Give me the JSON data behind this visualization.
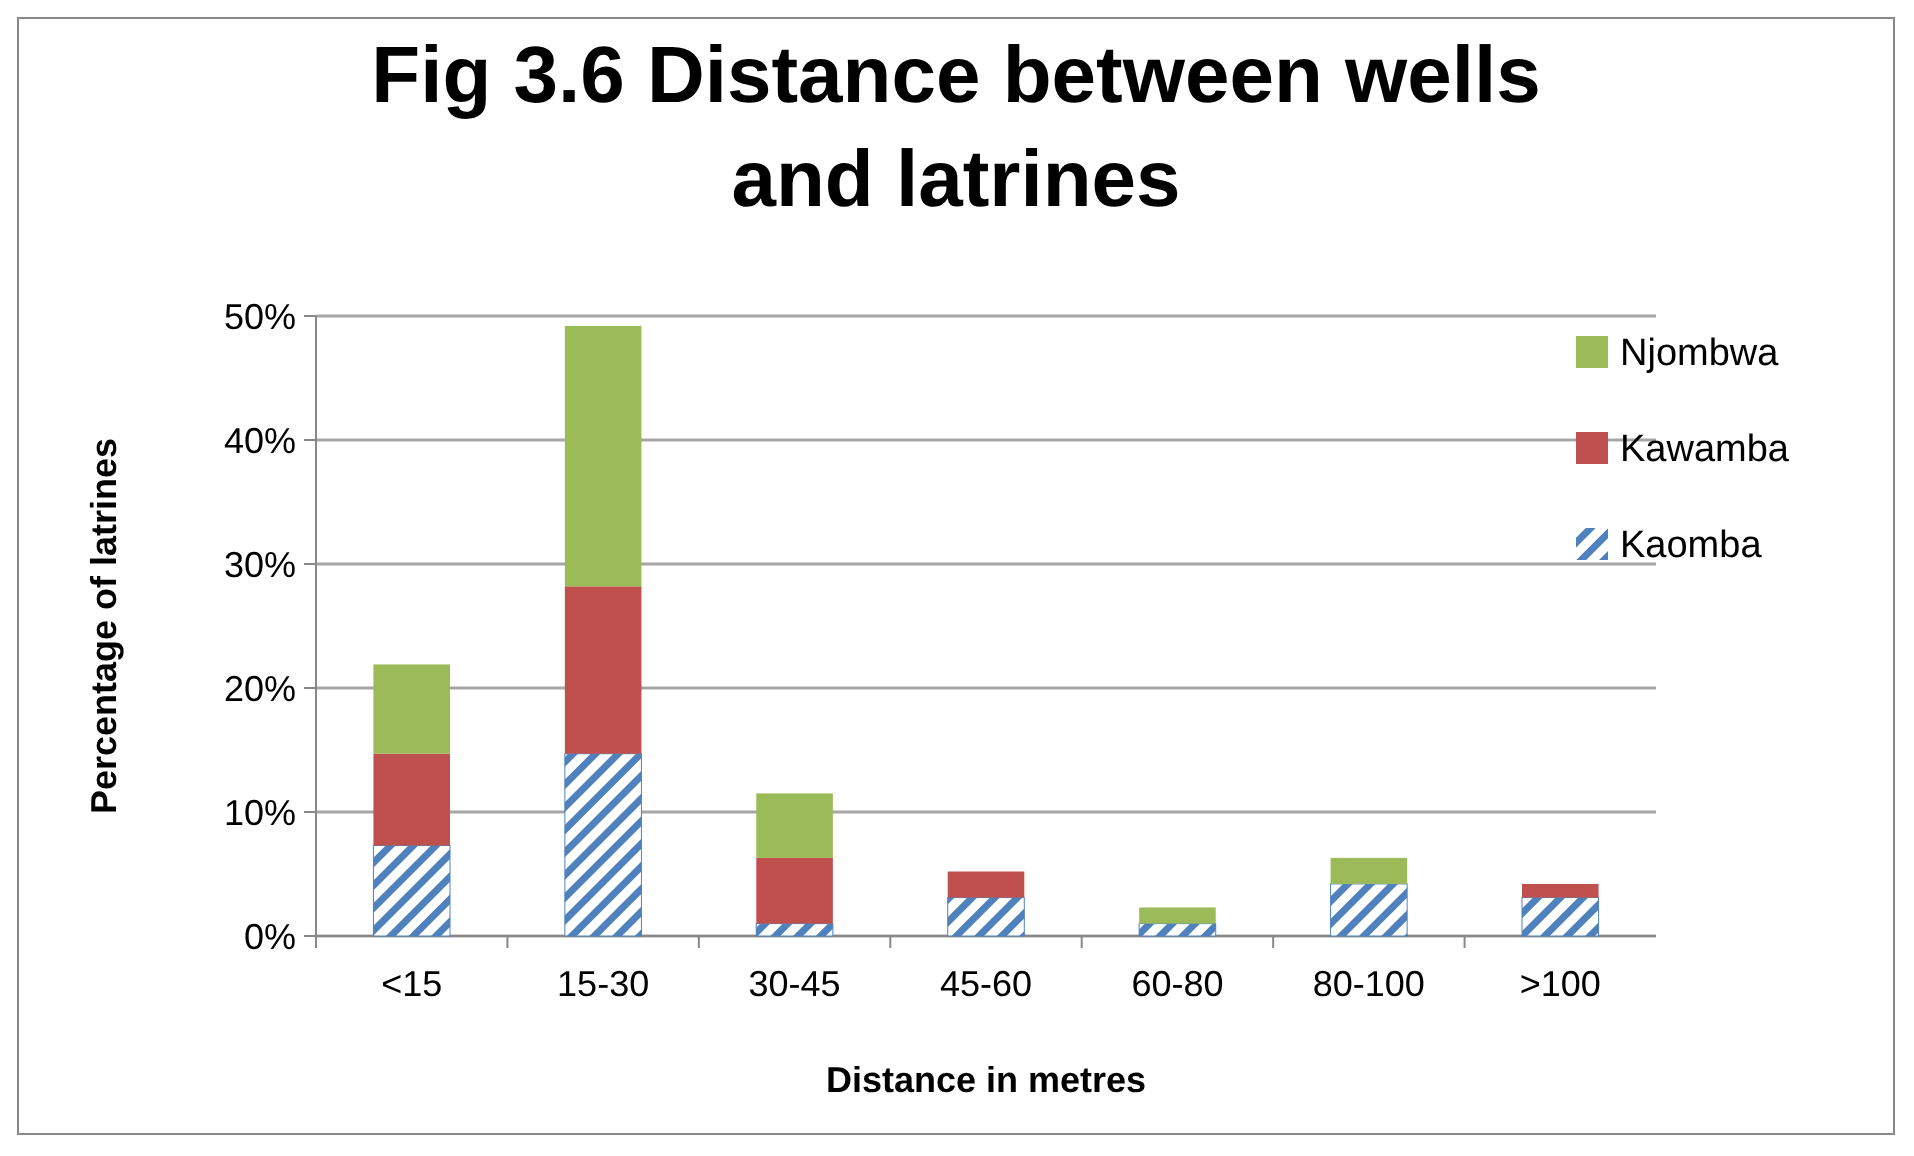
{
  "chart_data": {
    "type": "bar",
    "title": "Fig 3.6  Distance between wells and latrines",
    "xlabel": "Distance in metres",
    "ylabel": "Percentage of latrines",
    "categories": [
      "<15",
      "15-30",
      "30-45",
      "45-60",
      "60-80",
      "80-100",
      ">100"
    ],
    "stacked": true,
    "series": [
      {
        "name": "Kaomba",
        "color": "#4f81bd",
        "values": [
          7.3,
          14.7,
          1.0,
          3.1,
          1.0,
          4.2,
          3.1
        ]
      },
      {
        "name": "Kawamba",
        "color": "#c0504d",
        "values": [
          7.4,
          13.5,
          5.3,
          2.1,
          0,
          0,
          1.1
        ]
      },
      {
        "name": "Njombwa",
        "color": "#9bbb59",
        "values": [
          7.2,
          21.0,
          5.2,
          0,
          1.3,
          2.1,
          0
        ]
      }
    ],
    "ylim": [
      0,
      50
    ],
    "yticks": [
      {
        "value": 0,
        "label": "0%"
      },
      {
        "value": 10,
        "label": "10%"
      },
      {
        "value": 20,
        "label": "20%"
      },
      {
        "value": 30,
        "label": "30%"
      },
      {
        "value": 40,
        "label": "40%"
      },
      {
        "value": 50,
        "label": "50%"
      }
    ],
    "grid": "y",
    "legend": "top right"
  }
}
